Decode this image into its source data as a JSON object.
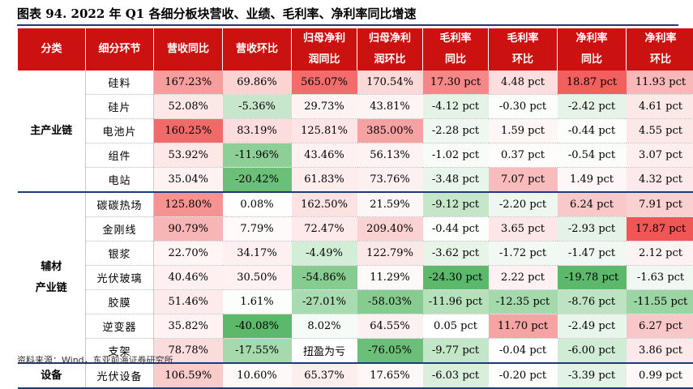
{
  "title": "图表 94. 2022 年 Q1 各细分板块营收、业绩、毛利率、净利率同比增速",
  "headers": [
    [
      "分类"
    ],
    [
      "细分环节"
    ],
    [
      "营收同比"
    ],
    [
      "营收环比"
    ],
    [
      "归母净利",
      "润同比"
    ],
    [
      "归母净利",
      "润环比"
    ],
    [
      "毛利率",
      "同比"
    ],
    [
      "毛利率",
      "环比"
    ],
    [
      "净利率",
      "同比"
    ],
    [
      "净利率",
      "环比"
    ]
  ],
  "groups": [
    {
      "label": [
        "主产业链"
      ],
      "rows": [
        {
          "name": "硅料",
          "cells": [
            {
              "v": "167.23%",
              "c": "#f69e9e"
            },
            {
              "v": "69.86%",
              "c": "#fbd3d3"
            },
            {
              "v": "565.07%",
              "c": "#f26c6c"
            },
            {
              "v": "170.54%",
              "c": "#fbd9d9"
            },
            {
              "v": "17.30 pct",
              "c": "#f48787"
            },
            {
              "v": "4.48 pct",
              "c": "#fcdede"
            },
            {
              "v": "18.87 pct",
              "c": "#f15f5f"
            },
            {
              "v": "11.93 pct",
              "c": "#f8b8b8"
            }
          ]
        },
        {
          "name": "硅片",
          "cells": [
            {
              "v": "52.08%",
              "c": "#fde8e8"
            },
            {
              "v": "-5.36%",
              "c": "#c8e6cc"
            },
            {
              "v": "29.73%",
              "c": "#fef3f3"
            },
            {
              "v": "43.81%",
              "c": "#fef4f4"
            },
            {
              "v": "-4.12 pct",
              "c": "#e4f3e6"
            },
            {
              "v": "-0.30 pct",
              "c": "#fbfdfb"
            },
            {
              "v": "-2.42 pct",
              "c": "#e6f4e8"
            },
            {
              "v": "4.61 pct",
              "c": "#fde8e8"
            }
          ]
        },
        {
          "name": "电池片",
          "cells": [
            {
              "v": "160.25%",
              "c": "#f16a6a"
            },
            {
              "v": "83.19%",
              "c": "#fcdcdc"
            },
            {
              "v": "125.81%",
              "c": "#fde5e5"
            },
            {
              "v": "385.00%",
              "c": "#f6a2a2"
            },
            {
              "v": "-2.28 pct",
              "c": "#eff8f0"
            },
            {
              "v": "1.59 pct",
              "c": "#fef5f5"
            },
            {
              "v": "-0.44 pct",
              "c": "#fcfefc"
            },
            {
              "v": "4.55 pct",
              "c": "#fde8e8"
            }
          ]
        },
        {
          "name": "组件",
          "cells": [
            {
              "v": "53.92%",
              "c": "#fde7e7"
            },
            {
              "v": "-11.96%",
              "c": "#8ecf98"
            },
            {
              "v": "43.46%",
              "c": "#fef1f1"
            },
            {
              "v": "56.13%",
              "c": "#fef3f3"
            },
            {
              "v": "-1.02 pct",
              "c": "#f8fcf8"
            },
            {
              "v": "0.37 pct",
              "c": "#fffcfc"
            },
            {
              "v": "-0.54 pct",
              "c": "#fbfdfb"
            },
            {
              "v": "3.07 pct",
              "c": "#feeeee"
            }
          ]
        },
        {
          "name": "电站",
          "cells": [
            {
              "v": "35.04%",
              "c": "#fef2f2"
            },
            {
              "v": "-20.42%",
              "c": "#6bbf78"
            },
            {
              "v": "61.83%",
              "c": "#feeded"
            },
            {
              "v": "73.76%",
              "c": "#fdf0f0"
            },
            {
              "v": "-3.48 pct",
              "c": "#e8f5ea"
            },
            {
              "v": "7.07 pct",
              "c": "#f8bcbc"
            },
            {
              "v": "1.49 pct",
              "c": "#fff7f7"
            },
            {
              "v": "4.32 pct",
              "c": "#fde9e9"
            }
          ]
        }
      ]
    },
    {
      "label": [
        "辅材",
        "产业链"
      ],
      "rows": [
        {
          "name": "碳碳热场",
          "cells": [
            {
              "v": "125.80%",
              "c": "#f59393"
            },
            {
              "v": "0.08%",
              "c": "#fdfefd"
            },
            {
              "v": "162.50%",
              "c": "#fde2e2"
            },
            {
              "v": "21.59%",
              "c": "#fdf6f6"
            },
            {
              "v": "-9.12 pct",
              "c": "#c5e6c9"
            },
            {
              "v": "-2.20 pct",
              "c": "#eef7ef"
            },
            {
              "v": "6.24 pct",
              "c": "#f9c9c9"
            },
            {
              "v": "7.91 pct",
              "c": "#fad0d0"
            }
          ]
        },
        {
          "name": "金刚线",
          "cells": [
            {
              "v": "90.79%",
              "c": "#f7b5b5"
            },
            {
              "v": "7.79%",
              "c": "#fff9f9"
            },
            {
              "v": "72.47%",
              "c": "#feeaea"
            },
            {
              "v": "209.40%",
              "c": "#fbd2d2"
            },
            {
              "v": "-0.44 pct",
              "c": "#fcfefc"
            },
            {
              "v": "3.65 pct",
              "c": "#fde6e6"
            },
            {
              "v": "-2.93 pct",
              "c": "#e4f3e6"
            },
            {
              "v": "17.87 pct",
              "c": "#f15656"
            }
          ]
        },
        {
          "name": "银浆",
          "cells": [
            {
              "v": "22.70%",
              "c": "#fff5f5"
            },
            {
              "v": "34.17%",
              "c": "#fef0f0"
            },
            {
              "v": "-4.49%",
              "c": "#d3eed7"
            },
            {
              "v": "122.79%",
              "c": "#fde8e8"
            },
            {
              "v": "-3.62 pct",
              "c": "#e7f5e9"
            },
            {
              "v": "-1.72 pct",
              "c": "#f2f9f3"
            },
            {
              "v": "-1.47 pct",
              "c": "#f0f8f1"
            },
            {
              "v": "2.12 pct",
              "c": "#fff2f2"
            }
          ]
        },
        {
          "name": "光伏玻璃",
          "cells": [
            {
              "v": "40.46%",
              "c": "#fef0f0"
            },
            {
              "v": "30.50%",
              "c": "#fff1f1"
            },
            {
              "v": "-54.86%",
              "c": "#86cb90"
            },
            {
              "v": "11.29%",
              "c": "#fef9f9"
            },
            {
              "v": "-24.30 pct",
              "c": "#5cb86a"
            },
            {
              "v": "2.22 pct",
              "c": "#fff1f1"
            },
            {
              "v": "-19.78 pct",
              "c": "#5cb86a"
            },
            {
              "v": "-1.63 pct",
              "c": "#f0f8f1"
            }
          ]
        },
        {
          "name": "胶膜",
          "cells": [
            {
              "v": "51.46%",
              "c": "#fdebeb"
            },
            {
              "v": "1.61%",
              "c": "#fcfefc"
            },
            {
              "v": "-27.01%",
              "c": "#a9dbb0"
            },
            {
              "v": "-58.03%",
              "c": "#86cb90"
            },
            {
              "v": "-11.96 pct",
              "c": "#b5e0ba"
            },
            {
              "v": "-12.35 pct",
              "c": "#a4d9ab"
            },
            {
              "v": "-8.76 pct",
              "c": "#bde3c2"
            },
            {
              "v": "-11.55 pct",
              "c": "#9bd5a3"
            }
          ]
        },
        {
          "name": "逆变器",
          "cells": [
            {
              "v": "35.82%",
              "c": "#fef2f2"
            },
            {
              "v": "-40.08%",
              "c": "#5cb86a"
            },
            {
              "v": "8.02%",
              "c": "#f5fbf6"
            },
            {
              "v": "64.55%",
              "c": "#fdf0f0"
            },
            {
              "v": "0.05 pct",
              "c": "#ffffff"
            },
            {
              "v": "11.70 pct",
              "c": "#f6a3a3"
            },
            {
              "v": "-2.49 pct",
              "c": "#e8f5ea"
            },
            {
              "v": "6.27 pct",
              "c": "#f9c7c7"
            }
          ]
        },
        {
          "name": "支架",
          "cells": [
            {
              "v": "78.78%",
              "c": "#fadcdc"
            },
            {
              "v": "-17.55%",
              "c": "#a6daad"
            },
            {
              "v": "扭盈为亏",
              "c": "#ffffff"
            },
            {
              "v": "-76.05%",
              "c": "#6bbf78"
            },
            {
              "v": "-9.77 pct",
              "c": "#c4e6c8"
            },
            {
              "v": "-0.04 pct",
              "c": "#ffffff"
            },
            {
              "v": "-6.00 pct",
              "c": "#d0ecd4"
            },
            {
              "v": "3.86 pct",
              "c": "#fde9e9"
            }
          ]
        }
      ]
    },
    {
      "label": [
        "设备"
      ],
      "rows": [
        {
          "name": "光伏设备",
          "cells": [
            {
              "v": "106.59%",
              "c": "#f9cbcb"
            },
            {
              "v": "10.60%",
              "c": "#fff8f8"
            },
            {
              "v": "65.37%",
              "c": "#fdeeee"
            },
            {
              "v": "17.65%",
              "c": "#fef7f7"
            },
            {
              "v": "-6.03 pct",
              "c": "#d9efdc"
            },
            {
              "v": "-0.20 pct",
              "c": "#fcfefc"
            },
            {
              "v": "-3.39 pct",
              "c": "#e2f2e4"
            },
            {
              "v": "0.99 pct",
              "c": "#fff8f8"
            }
          ]
        }
      ]
    }
  ],
  "source": "资料来源：Wind，东亚前海证券研究所"
}
